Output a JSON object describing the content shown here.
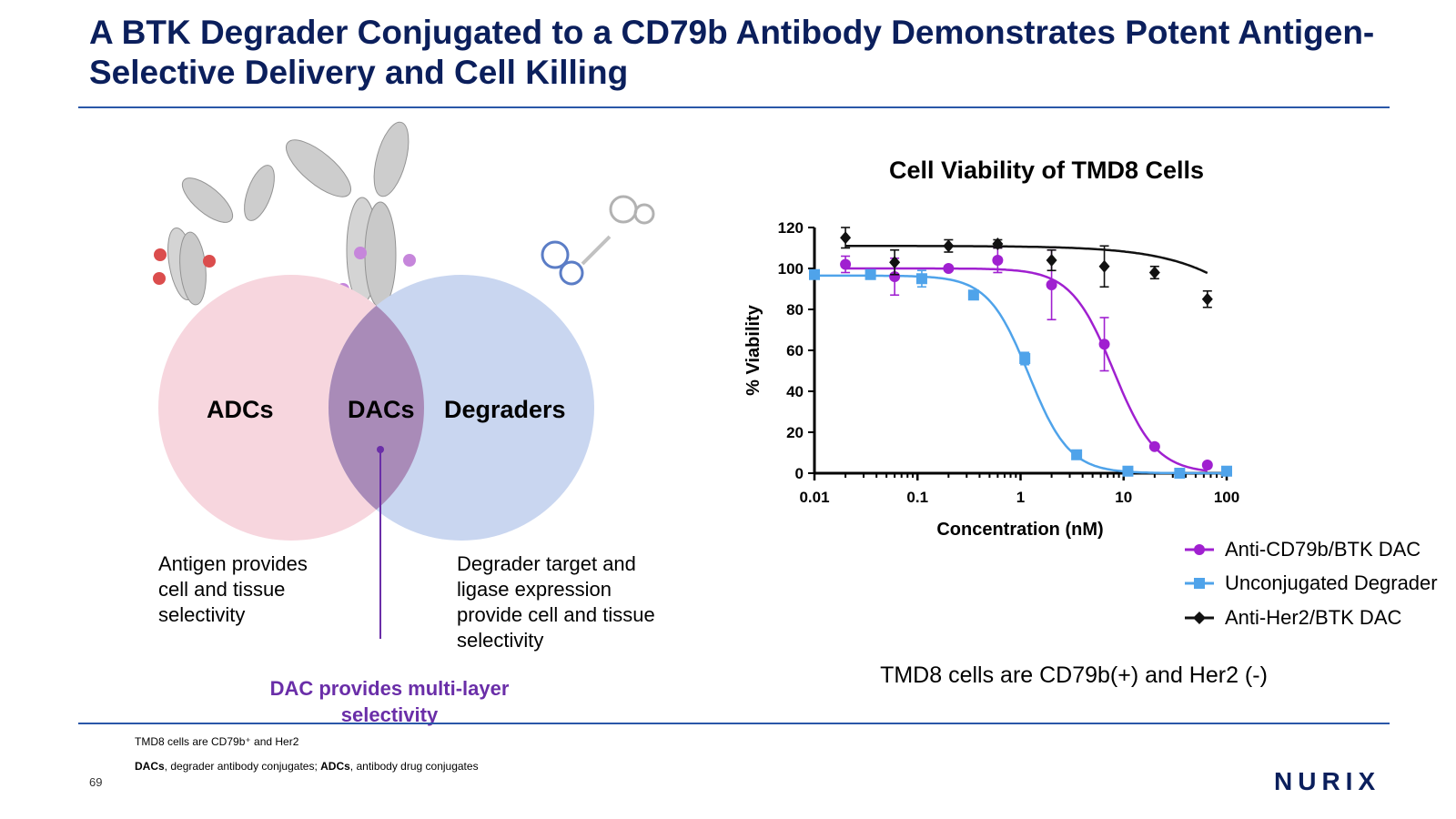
{
  "slide": {
    "title": "A BTK Degrader Conjugated to a CD79b Antibody Demonstrates Potent Antigen-Selective Delivery and Cell Killing",
    "page_number": "69",
    "logo_text": "NURIX"
  },
  "venn": {
    "left_label": "ADCs",
    "center_label": "DACs",
    "right_label": "Degraders",
    "left_desc": "Antigen provides cell and tissue selectivity",
    "right_desc": "Degrader target and ligase expression provide cell and tissue selectivity",
    "callout": "DAC provides multi-layer selectivity",
    "colors": {
      "left": "#f7d6de",
      "right": "#c9d6f0",
      "overlap": "#a98bb8",
      "callout": "#6a2ea8"
    }
  },
  "chart_note": "TMD8 cells are CD79b(+) and Her2 (-)",
  "footnotes": {
    "line1": "TMD8 cells are CD79b⁺ and Her2",
    "line2_bold_1": "DACs",
    "line2_text_1": ", degrader antibody conjugates; ",
    "line2_bold_2": "ADCs",
    "line2_text_2": ", antibody drug conjugates"
  },
  "chart_data": {
    "type": "scatter",
    "title": "Cell Viability of TMD8 Cells",
    "xlabel": "Concentration (nM)",
    "ylabel": "% Viability",
    "xscale": "log",
    "xlim": [
      0.01,
      100
    ],
    "ylim": [
      0,
      120
    ],
    "xticks": [
      "0.01",
      "0.1",
      "1",
      "10",
      "100"
    ],
    "yticks": [
      "0",
      "20",
      "40",
      "60",
      "80",
      "100",
      "120"
    ],
    "legend_position": "bottom-right",
    "series": [
      {
        "name": "Anti-CD79b/BTK DAC",
        "color": "#a020d0",
        "marker": "circle",
        "x": [
          0.02,
          0.06,
          0.2,
          0.6,
          2,
          6.5,
          20,
          65
        ],
        "y": [
          102,
          96,
          100,
          104,
          92,
          63,
          13,
          4
        ],
        "err": [
          4,
          9,
          0,
          6,
          17,
          13,
          0,
          0
        ],
        "fit": {
          "top": 100,
          "bottom": 0,
          "ec50": 8,
          "hill": 2.1
        }
      },
      {
        "name": "Unconjugated Degrader",
        "color": "#4fa3ea",
        "marker": "square",
        "x": [
          0.01,
          0.035,
          0.11,
          0.35,
          1.1,
          3.5,
          11,
          35,
          100
        ],
        "y": [
          97,
          97,
          95,
          87,
          56,
          9,
          1,
          0,
          1
        ],
        "err": [
          0,
          2,
          4,
          0,
          3,
          0,
          0,
          0,
          0
        ],
        "fit": {
          "top": 96.5,
          "bottom": 0,
          "ec50": 1.2,
          "hill": 2.2
        }
      },
      {
        "name": "Anti-Her2/BTK DAC",
        "color": "#111111",
        "marker": "diamond",
        "x": [
          0.02,
          0.06,
          0.2,
          0.6,
          2,
          6.5,
          20,
          65
        ],
        "y": [
          115,
          103,
          111,
          112,
          104,
          101,
          98,
          85
        ],
        "err": [
          5,
          6,
          3,
          2,
          5,
          10,
          3,
          4
        ],
        "fit": {
          "top": 111,
          "bottom": 0,
          "ec50": 600,
          "hill": 0.9
        }
      }
    ]
  }
}
